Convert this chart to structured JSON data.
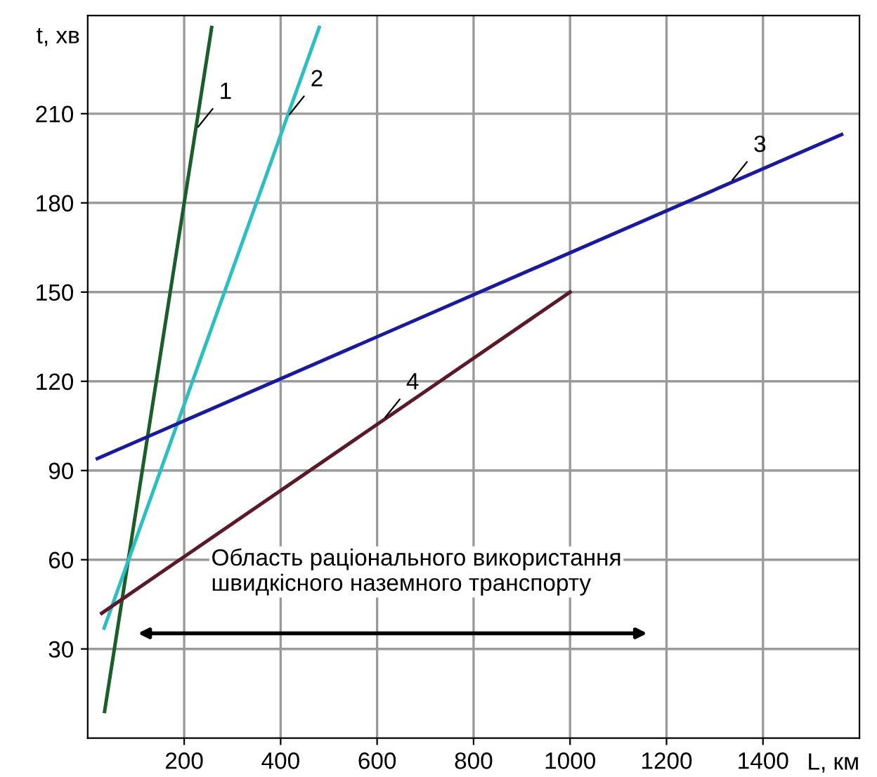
{
  "chart_data": {
    "type": "line",
    "xlabel": "L, км",
    "ylabel": "t, хв",
    "xlim": [
      0,
      1600
    ],
    "ylim": [
      0,
      243
    ],
    "xticks": [
      200,
      400,
      600,
      800,
      1000,
      1200,
      1400
    ],
    "yticks": [
      30,
      60,
      90,
      120,
      150,
      180,
      210
    ],
    "grid": true,
    "marker": "none",
    "line_style": "solid",
    "series": [
      {
        "name": "1",
        "color": "#1a5e2a",
        "x": [
          35,
          257
        ],
        "values": [
          9,
          239
        ]
      },
      {
        "name": "2",
        "color": "#2bbfc4",
        "x": [
          34,
          480
        ],
        "values": [
          37,
          239
        ]
      },
      {
        "name": "3",
        "color": "#1a1a9c",
        "x": [
          20,
          1563
        ],
        "values": [
          94,
          203
        ]
      },
      {
        "name": "4",
        "color": "#5a1a2a",
        "x": [
          29,
          1000
        ],
        "values": [
          42,
          150
        ]
      }
    ],
    "annotations": [
      "Область раціонального використання\nшвидкісного наземного транспорту"
    ]
  }
}
